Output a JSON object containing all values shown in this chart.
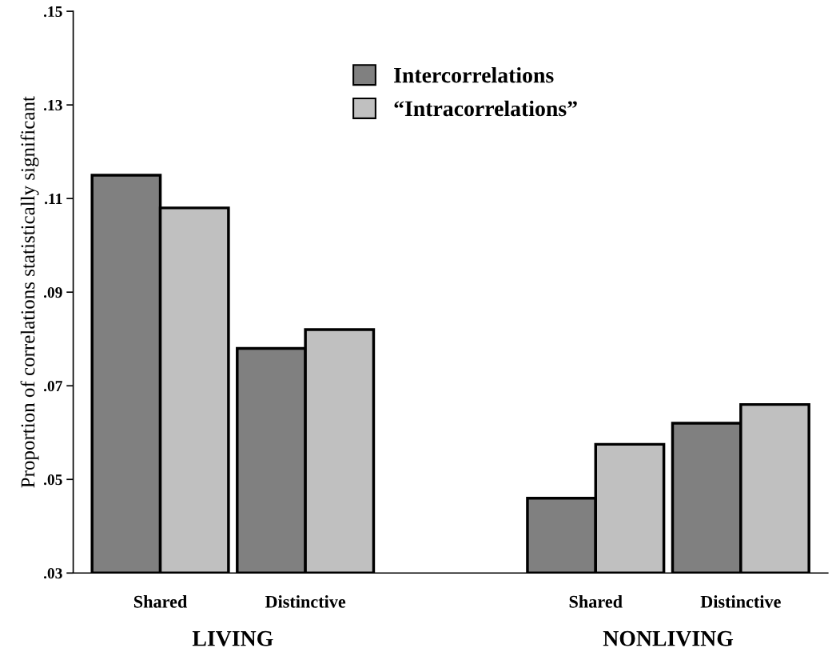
{
  "chart_data": {
    "type": "bar",
    "ylabel": "Proportion of correlations statistically significant",
    "categories": [
      "Shared",
      "Distinctive",
      null,
      "Shared",
      "Distinctive"
    ],
    "series": [
      {
        "name": "Intercorrelations",
        "color": "#808080",
        "values": [
          0.115,
          0.078,
          null,
          0.046,
          0.062
        ]
      },
      {
        "name": "“Intracorrelations”",
        "color": "#c0c0c0",
        "values": [
          0.108,
          0.082,
          null,
          0.0575,
          0.066
        ]
      }
    ],
    "ylim": [
      0.03,
      0.15
    ],
    "yticks": [
      {
        "value": 0.03,
        "label": ".03"
      },
      {
        "value": 0.05,
        "label": ".05"
      },
      {
        "value": 0.07,
        "label": ".07"
      },
      {
        "value": 0.09,
        "label": ".09"
      },
      {
        "value": 0.11,
        "label": ".11"
      },
      {
        "value": 0.13,
        "label": ".13"
      },
      {
        "value": 0.15,
        "label": ".15"
      }
    ],
    "annotations": [
      "LIVING",
      "NONLIVING"
    ],
    "legend": "top",
    "grid": false
  }
}
